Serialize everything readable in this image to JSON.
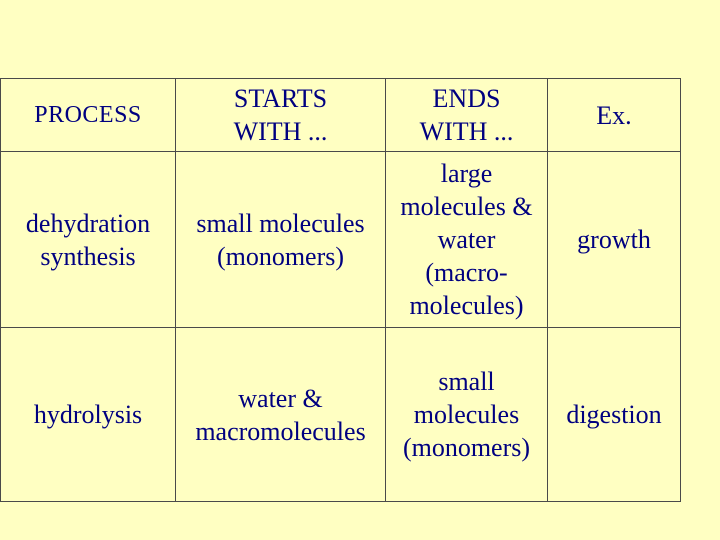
{
  "table": {
    "headers": {
      "process": "PROCESS",
      "starts_with": "STARTS\nWITH ...",
      "ends_with": "ENDS\nWITH ...",
      "example": "Ex."
    },
    "rows": [
      {
        "process": "dehydration\nsynthesis",
        "starts_with": "small molecules\n(monomers)",
        "ends_with": "large\nmolecules &\nwater\n(macro-\nmolecules)",
        "example": "growth"
      },
      {
        "process": "hydrolysis",
        "starts_with": "water &\nmacromolecules",
        "ends_with": "small\nmolecules\n(monomers)",
        "example": "digestion"
      }
    ]
  }
}
